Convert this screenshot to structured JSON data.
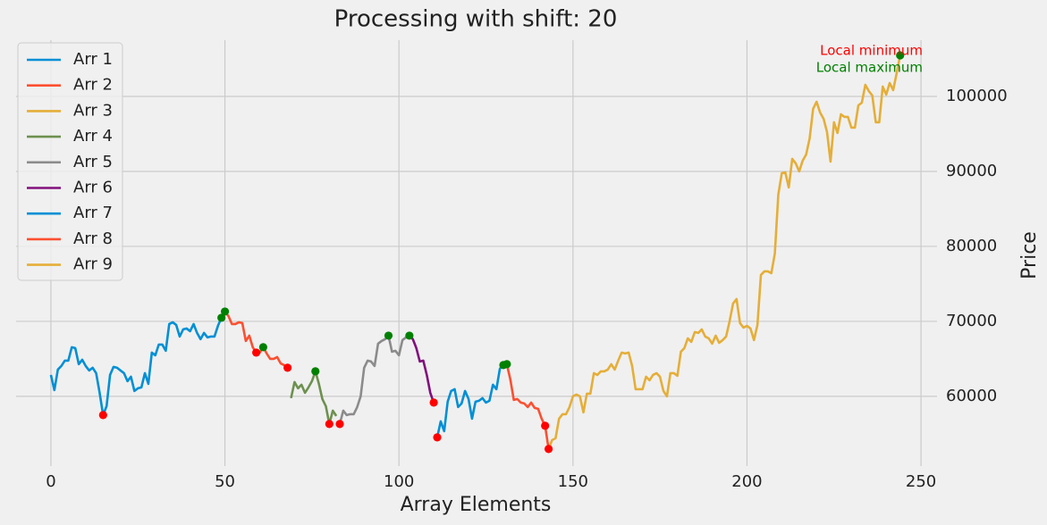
{
  "chart_data": {
    "type": "line",
    "title": "Processing with shift: 20",
    "x_label": "Array Elements",
    "y_label": "Price",
    "xlim": [
      -10,
      254.6
    ],
    "ylim": [
      50700,
      107500
    ],
    "xticks": [
      0,
      50,
      100,
      150,
      200,
      250
    ],
    "yticks": [
      60000,
      70000,
      80000,
      90000,
      100000
    ],
    "grid": true,
    "legend": "upper left",
    "series": [
      {
        "name": "Arr 1",
        "color": "#008fd5",
        "x": [
          0,
          1,
          2,
          3,
          4,
          5,
          6,
          7,
          8,
          9,
          10,
          11,
          12,
          13,
          14,
          15,
          16,
          17,
          18,
          19,
          20,
          21,
          22,
          23,
          24,
          25,
          26,
          27,
          28,
          29,
          30,
          31,
          32,
          33,
          34,
          35,
          36,
          37,
          38,
          39,
          40,
          41,
          42,
          43,
          44,
          45,
          46,
          47,
          48,
          49,
          50
        ],
        "values": [
          62857,
          60833,
          63571,
          64048,
          64762,
          64762,
          66548,
          66429,
          64286,
          64881,
          64048,
          63452,
          63810,
          63095,
          60476,
          57500,
          58690,
          62857,
          63929,
          63810,
          63452,
          63095,
          62024,
          62619,
          60714,
          61071,
          61190,
          63095,
          61667,
          65833,
          65476,
          66905,
          66905,
          66071,
          69643,
          69881,
          69524,
          67976,
          68929,
          69048,
          68690,
          69643,
          68452,
          67619,
          68452,
          67857,
          67976,
          67976,
          69405,
          70476,
          71310
        ]
      },
      {
        "name": "Arr 2",
        "color": "#fc4f30",
        "x": [
          50,
          51,
          52,
          53,
          54,
          55,
          56,
          57,
          58,
          59,
          60,
          61,
          62,
          63,
          64,
          65,
          66,
          67,
          68
        ],
        "values": [
          71310,
          70714,
          69643,
          69643,
          69881,
          69762,
          67381,
          68095,
          66548,
          65833,
          65833,
          66548,
          65714,
          65000,
          65000,
          65238,
          64405,
          64167,
          63810
        ]
      },
      {
        "name": "Arr 3",
        "color": "#e5ae38",
        "x": [],
        "values": []
      },
      {
        "name": "Arr 4",
        "color": "#6d904f",
        "x": [
          69,
          70,
          71,
          72,
          73,
          74,
          75,
          76,
          77,
          78,
          79,
          80,
          81,
          82
        ],
        "values": [
          59762,
          61905,
          61071,
          61548,
          60476,
          61190,
          62024,
          63333,
          61667,
          59643,
          58690,
          56310,
          58095,
          57381
        ]
      },
      {
        "name": "Arr 5",
        "color": "#8b8b8b",
        "x": [
          83,
          84,
          85,
          86,
          87,
          88,
          89,
          90,
          91,
          92,
          93,
          94,
          95,
          96,
          97,
          98,
          99,
          100,
          101,
          102,
          103
        ],
        "values": [
          56310,
          58095,
          57500,
          57619,
          57619,
          58571,
          60000,
          63810,
          64762,
          64643,
          64048,
          67024,
          67381,
          67619,
          68095,
          65952,
          66071,
          65476,
          67500,
          67857,
          68095
        ]
      },
      {
        "name": "Arr 6",
        "color": "#810f7c",
        "x": [
          103,
          104,
          105,
          106,
          107,
          108,
          109,
          110
        ],
        "values": [
          68095,
          67619,
          66429,
          64643,
          64762,
          62857,
          60476,
          59167
        ]
      },
      {
        "name": "Arr 7",
        "color": "#008fd5",
        "x": [
          111,
          112,
          113,
          114,
          115,
          116,
          117,
          118,
          119,
          120,
          121,
          122,
          123,
          124,
          125,
          126,
          127,
          128,
          129,
          130,
          131
        ],
        "values": [
          54524,
          56667,
          55357,
          59286,
          60714,
          60952,
          58571,
          59048,
          60714,
          59643,
          57024,
          59286,
          59405,
          59762,
          59167,
          59405,
          61548,
          60952,
          63690,
          64167,
          64286
        ]
      },
      {
        "name": "Arr 8",
        "color": "#fc4f30",
        "x": [
          131,
          132,
          133,
          134,
          135,
          136,
          137,
          138,
          139,
          140,
          141,
          142,
          143
        ],
        "values": [
          64286,
          62262,
          59524,
          59643,
          59167,
          59048,
          58571,
          59167,
          58452,
          58333,
          57024,
          56071,
          52976
        ]
      },
      {
        "name": "Arr 9",
        "color": "#e5ae38",
        "x": [
          143,
          144,
          145,
          146,
          147,
          148,
          149,
          150,
          151,
          152,
          153,
          154,
          155,
          156,
          157,
          158,
          159,
          160,
          161,
          162,
          163,
          164,
          165,
          166,
          167,
          168,
          169,
          170,
          171,
          172,
          173,
          174,
          175,
          176,
          177,
          178,
          179,
          180,
          181,
          182,
          183,
          184,
          185,
          186,
          187,
          188,
          189,
          190,
          191,
          192,
          193,
          194,
          195,
          196,
          197,
          198,
          199,
          200,
          201,
          202,
          203,
          204,
          205,
          206,
          207,
          208,
          209,
          210,
          211,
          212,
          213,
          214,
          215,
          216,
          217,
          218,
          219,
          220,
          221,
          222,
          223,
          224,
          225,
          226,
          227,
          228,
          229,
          230,
          231,
          232,
          233,
          234,
          235,
          236,
          237,
          238,
          239,
          240,
          241,
          242,
          243,
          244
        ],
        "values": [
          52976,
          54167,
          54405,
          57024,
          57619,
          57619,
          58571,
          60000,
          60238,
          60000,
          57857,
          60357,
          60357,
          63095,
          62857,
          63333,
          63333,
          63571,
          64286,
          63571,
          64762,
          65833,
          65714,
          65833,
          64048,
          60952,
          60952,
          60952,
          62619,
          62143,
          62857,
          63095,
          62619,
          60714,
          60000,
          63095,
          63095,
          62738,
          65952,
          66429,
          67738,
          67262,
          68571,
          68452,
          68929,
          67976,
          67738,
          67024,
          68095,
          67143,
          67500,
          67976,
          70000,
          72381,
          72976,
          69762,
          69167,
          69405,
          69048,
          67500,
          69524,
          76190,
          76667,
          76667,
          76429,
          79048,
          86905,
          89762,
          89881,
          87857,
          91667,
          91071,
          90000,
          91429,
          92262,
          94405,
          98333,
          99286,
          97857,
          97024,
          95238,
          91310,
          96548,
          95119,
          97619,
          97262,
          97262,
          95833,
          95833,
          98810,
          99167,
          101548,
          100714,
          100119,
          96548,
          96548,
          101310,
          100238,
          101786,
          100833,
          103095,
          105476
        ]
      }
    ],
    "markers": [
      {
        "name": "Local minimum",
        "color": "#ff0000",
        "x": [
          15,
          59,
          68,
          80,
          83,
          110,
          111,
          142,
          143
        ],
        "values": [
          57500,
          65833,
          63810,
          56310,
          56310,
          59167,
          54524,
          56071,
          52976
        ]
      },
      {
        "name": "Local maximum",
        "color": "#008000",
        "x": [
          49,
          50,
          61,
          76,
          97,
          103,
          130,
          131,
          244
        ],
        "values": [
          70476,
          71310,
          66548,
          63333,
          68095,
          68095,
          64167,
          64286,
          105476
        ]
      }
    ]
  }
}
